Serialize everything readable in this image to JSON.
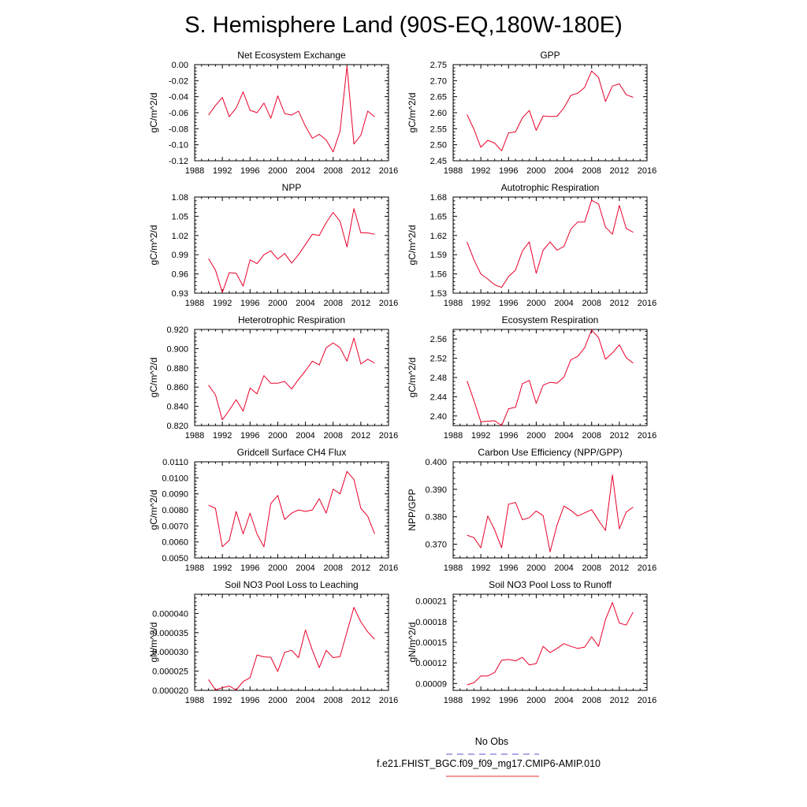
{
  "figure": {
    "title": "S. Hemisphere Land (90S-EQ,180W-180E)",
    "legend": [
      {
        "label": "No Obs",
        "color": "#5555cc",
        "dash": true
      },
      {
        "label": "f.e21.FHIST_BGC.f09_f09_mg17.CMIP6-AMIP.010",
        "color": "#e03030",
        "dash": false
      }
    ]
  },
  "chart_data": [
    {
      "type": "line",
      "title": "Net Ecosystem Exchange",
      "ylabel": "gC/m^2/d",
      "xlim": [
        1988,
        2016
      ],
      "xticks": [
        1988,
        1992,
        1996,
        2000,
        2004,
        2008,
        2012,
        2016
      ],
      "ylim": [
        -0.12,
        0.0
      ],
      "yticks": [
        "0.00",
        "-0.02",
        "-0.04",
        "-0.06",
        "-0.08",
        "-0.10",
        "-0.12"
      ],
      "ytick_values": [
        0.0,
        -0.02,
        -0.04,
        -0.06,
        -0.08,
        -0.1,
        -0.12
      ],
      "series": [
        {
          "name": "f.e21.FHIST_BGC.f09_f09_mg17.CMIP6-AMIP.010",
          "color": "#e8002a",
          "x": [
            1990,
            1991,
            1992,
            1993,
            1994,
            1995,
            1996,
            1997,
            1998,
            1999,
            2000,
            2001,
            2002,
            2003,
            2004,
            2005,
            2006,
            2007,
            2008,
            2009,
            2010,
            2011,
            2012,
            2013,
            2014
          ],
          "values": [
            -0.063,
            -0.051,
            -0.041,
            -0.065,
            -0.054,
            -0.034,
            -0.057,
            -0.06,
            -0.048,
            -0.067,
            -0.039,
            -0.061,
            -0.063,
            -0.058,
            -0.077,
            -0.092,
            -0.087,
            -0.094,
            -0.109,
            -0.083,
            -0.002,
            -0.099,
            -0.088,
            -0.058,
            -0.065
          ]
        }
      ]
    },
    {
      "type": "line",
      "title": "GPP",
      "ylabel": "gC/m^2/d",
      "xlim": [
        1988,
        2016
      ],
      "xticks": [
        1988,
        1992,
        1996,
        2000,
        2004,
        2008,
        2012,
        2016
      ],
      "ylim": [
        2.45,
        2.75
      ],
      "yticks": [
        "2.75",
        "2.70",
        "2.65",
        "2.60",
        "2.55",
        "2.50",
        "2.45"
      ],
      "ytick_values": [
        2.75,
        2.7,
        2.65,
        2.6,
        2.55,
        2.5,
        2.45
      ],
      "series": [
        {
          "name": "f.e21.FHIST_BGC.f09_f09_mg17.CMIP6-AMIP.010",
          "color": "#e8002a",
          "x": [
            1990,
            1991,
            1992,
            1993,
            1994,
            1995,
            1996,
            1997,
            1998,
            1999,
            2000,
            2001,
            2002,
            2003,
            2004,
            2005,
            2006,
            2007,
            2008,
            2009,
            2010,
            2011,
            2012,
            2013,
            2014
          ],
          "values": [
            2.594,
            2.548,
            2.492,
            2.514,
            2.505,
            2.481,
            2.537,
            2.54,
            2.584,
            2.607,
            2.545,
            2.59,
            2.588,
            2.589,
            2.615,
            2.654,
            2.661,
            2.679,
            2.73,
            2.71,
            2.635,
            2.683,
            2.69,
            2.656,
            2.648
          ]
        }
      ]
    },
    {
      "type": "line",
      "title": "NPP",
      "ylabel": "gC/m^2/d",
      "xlim": [
        1988,
        2016
      ],
      "xticks": [
        1988,
        1992,
        1996,
        2000,
        2004,
        2008,
        2012,
        2016
      ],
      "ylim": [
        0.93,
        1.08
      ],
      "yticks": [
        "1.08",
        "1.05",
        "1.02",
        "0.99",
        "0.96",
        "0.93"
      ],
      "ytick_values": [
        1.08,
        1.05,
        1.02,
        0.99,
        0.96,
        0.93
      ],
      "series": [
        {
          "name": "f.e21.FHIST_BGC.f09_f09_mg17.CMIP6-AMIP.010",
          "color": "#e8002a",
          "x": [
            1990,
            1991,
            1992,
            1993,
            1994,
            1995,
            1996,
            1997,
            1998,
            1999,
            2000,
            2001,
            2002,
            2003,
            2004,
            2005,
            2006,
            2007,
            2008,
            2009,
            2010,
            2011,
            2012,
            2013,
            2014
          ],
          "values": [
            0.984,
            0.966,
            0.931,
            0.962,
            0.961,
            0.941,
            0.982,
            0.976,
            0.99,
            0.996,
            0.983,
            0.992,
            0.977,
            0.99,
            1.006,
            1.022,
            1.02,
            1.04,
            1.056,
            1.042,
            1.002,
            1.062,
            1.024,
            1.024,
            1.022
          ]
        }
      ]
    },
    {
      "type": "line",
      "title": "Autotrophic Respiration",
      "ylabel": "gC/m^2/d",
      "xlim": [
        1988,
        2016
      ],
      "xticks": [
        1988,
        1992,
        1996,
        2000,
        2004,
        2008,
        2012,
        2016
      ],
      "ylim": [
        1.53,
        1.68
      ],
      "yticks": [
        "1.68",
        "1.65",
        "1.62",
        "1.59",
        "1.56",
        "1.53"
      ],
      "ytick_values": [
        1.68,
        1.65,
        1.62,
        1.59,
        1.56,
        1.53
      ],
      "series": [
        {
          "name": "f.e21.FHIST_BGC.f09_f09_mg17.CMIP6-AMIP.010",
          "color": "#e8002a",
          "x": [
            1990,
            1991,
            1992,
            1993,
            1994,
            1995,
            1996,
            1997,
            1998,
            1999,
            2000,
            2001,
            2002,
            2003,
            2004,
            2005,
            2006,
            2007,
            2008,
            2009,
            2010,
            2011,
            2012,
            2013,
            2014
          ],
          "values": [
            1.61,
            1.582,
            1.56,
            1.552,
            1.543,
            1.539,
            1.556,
            1.566,
            1.596,
            1.61,
            1.561,
            1.597,
            1.61,
            1.597,
            1.603,
            1.63,
            1.641,
            1.641,
            1.675,
            1.669,
            1.633,
            1.622,
            1.667,
            1.631,
            1.625
          ]
        }
      ]
    },
    {
      "type": "line",
      "title": "Heterotrophic Respiration",
      "ylabel": "gC/m^2/d",
      "xlim": [
        1988,
        2016
      ],
      "xticks": [
        1988,
        1992,
        1996,
        2000,
        2004,
        2008,
        2012,
        2016
      ],
      "ylim": [
        0.82,
        0.92
      ],
      "yticks": [
        "0.920",
        "0.900",
        "0.880",
        "0.860",
        "0.840",
        "0.820"
      ],
      "ytick_values": [
        0.92,
        0.9,
        0.88,
        0.86,
        0.84,
        0.82
      ],
      "series": [
        {
          "name": "f.e21.FHIST_BGC.f09_f09_mg17.CMIP6-AMIP.010",
          "color": "#e8002a",
          "x": [
            1990,
            1991,
            1992,
            1993,
            1994,
            1995,
            1996,
            1997,
            1998,
            1999,
            2000,
            2001,
            2002,
            2003,
            2004,
            2005,
            2006,
            2007,
            2008,
            2009,
            2010,
            2011,
            2012,
            2013,
            2014
          ],
          "values": [
            0.862,
            0.852,
            0.826,
            0.836,
            0.847,
            0.835,
            0.859,
            0.853,
            0.872,
            0.864,
            0.864,
            0.866,
            0.858,
            0.868,
            0.877,
            0.887,
            0.883,
            0.901,
            0.906,
            0.901,
            0.887,
            0.911,
            0.884,
            0.889,
            0.885
          ]
        }
      ]
    },
    {
      "type": "line",
      "title": "Ecosystem Respiration",
      "ylabel": "gC/m^2/d",
      "xlim": [
        1988,
        2016
      ],
      "xticks": [
        1988,
        1992,
        1996,
        2000,
        2004,
        2008,
        2012,
        2016
      ],
      "ylim": [
        2.38,
        2.58
      ],
      "yticks": [
        "2.56",
        "2.52",
        "2.48",
        "2.44",
        "2.40"
      ],
      "ytick_values": [
        2.56,
        2.52,
        2.48,
        2.44,
        2.4
      ],
      "series": [
        {
          "name": "f.e21.FHIST_BGC.f09_f09_mg17.CMIP6-AMIP.010",
          "color": "#e8002a",
          "x": [
            1990,
            1991,
            1992,
            1993,
            1994,
            1995,
            1996,
            1997,
            1998,
            1999,
            2000,
            2001,
            2002,
            2003,
            2004,
            2005,
            2006,
            2007,
            2008,
            2009,
            2010,
            2011,
            2012,
            2013,
            2014
          ],
          "values": [
            2.473,
            2.432,
            2.388,
            2.389,
            2.39,
            2.38,
            2.415,
            2.418,
            2.467,
            2.474,
            2.426,
            2.464,
            2.47,
            2.468,
            2.481,
            2.517,
            2.524,
            2.542,
            2.579,
            2.563,
            2.518,
            2.531,
            2.548,
            2.521,
            2.51
          ]
        }
      ]
    },
    {
      "type": "line",
      "title": "Gridcell Surface CH4 Flux",
      "ylabel": "gC/m^2/d",
      "xlim": [
        1988,
        2016
      ],
      "xticks": [
        1988,
        1992,
        1996,
        2000,
        2004,
        2008,
        2012,
        2016
      ],
      "ylim": [
        0.005,
        0.011
      ],
      "yticks": [
        "0.0110",
        "0.0100",
        "0.0090",
        "0.0080",
        "0.0070",
        "0.0060",
        "0.0050"
      ],
      "ytick_values": [
        0.011,
        0.01,
        0.009,
        0.008,
        0.007,
        0.006,
        0.005
      ],
      "series": [
        {
          "name": "f.e21.FHIST_BGC.f09_f09_mg17.CMIP6-AMIP.010",
          "color": "#e8002a",
          "x": [
            1990,
            1991,
            1992,
            1993,
            1994,
            1995,
            1996,
            1997,
            1998,
            1999,
            2000,
            2001,
            2002,
            2003,
            2004,
            2005,
            2006,
            2007,
            2008,
            2009,
            2010,
            2011,
            2012,
            2013,
            2014
          ],
          "values": [
            0.0083,
            0.0081,
            0.0057,
            0.0061,
            0.0079,
            0.0065,
            0.0078,
            0.0065,
            0.0057,
            0.0084,
            0.0089,
            0.0074,
            0.0078,
            0.008,
            0.0079,
            0.008,
            0.0087,
            0.0078,
            0.0093,
            0.009,
            0.0104,
            0.0099,
            0.0081,
            0.0076,
            0.0065
          ]
        }
      ]
    },
    {
      "type": "line",
      "title": "Carbon Use Efficiency (NPP/GPP)",
      "ylabel": "NPP/GPP",
      "xlim": [
        1988,
        2016
      ],
      "xticks": [
        1988,
        1992,
        1996,
        2000,
        2004,
        2008,
        2012,
        2016
      ],
      "ylim": [
        0.365,
        0.4
      ],
      "yticks": [
        "0.400",
        "0.390",
        "0.380",
        "0.370"
      ],
      "ytick_values": [
        0.4,
        0.39,
        0.38,
        0.37
      ],
      "series": [
        {
          "name": "f.e21.FHIST_BGC.f09_f09_mg17.CMIP6-AMIP.010",
          "color": "#e8002a",
          "x": [
            1990,
            1991,
            1992,
            1993,
            1994,
            1995,
            1996,
            1997,
            1998,
            1999,
            2000,
            2001,
            2002,
            2003,
            2004,
            2005,
            2006,
            2007,
            2008,
            2009,
            2010,
            2011,
            2012,
            2013,
            2014
          ],
          "values": [
            0.3733,
            0.3724,
            0.3687,
            0.3803,
            0.3752,
            0.3687,
            0.3846,
            0.3852,
            0.3789,
            0.3797,
            0.3821,
            0.3804,
            0.3672,
            0.377,
            0.3839,
            0.3823,
            0.3803,
            0.3814,
            0.3826,
            0.3787,
            0.375,
            0.3952,
            0.3756,
            0.3817,
            0.3835
          ]
        }
      ]
    },
    {
      "type": "line",
      "title": "Soil NO3 Pool Loss to Leaching",
      "ylabel": "gN/m^2/d",
      "xlim": [
        1988,
        2016
      ],
      "xticks": [
        1988,
        1992,
        1996,
        2000,
        2004,
        2008,
        2012,
        2016
      ],
      "ylim": [
        2e-05,
        4.5e-05
      ],
      "yticks": [
        "0.000040",
        "0.000035",
        "0.000030",
        "0.000025",
        "0.000020"
      ],
      "ytick_values": [
        4e-05,
        3.5e-05,
        3e-05,
        2.5e-05,
        2e-05
      ],
      "series": [
        {
          "name": "f.e21.FHIST_BGC.f09_f09_mg17.CMIP6-AMIP.010",
          "color": "#e8002a",
          "x": [
            1990,
            1991,
            1992,
            1993,
            1994,
            1995,
            1996,
            1997,
            1998,
            1999,
            2000,
            2001,
            2002,
            2003,
            2004,
            2005,
            2006,
            2007,
            2008,
            2009,
            2010,
            2011,
            2012,
            2013,
            2014
          ],
          "values": [
            2.28e-05,
            2.01e-05,
            2.07e-05,
            2.11e-05,
            2.01e-05,
            2.23e-05,
            2.33e-05,
            2.92e-05,
            2.87e-05,
            2.86e-05,
            2.49e-05,
            2.99e-05,
            3.04e-05,
            2.85e-05,
            3.57e-05,
            3.04e-05,
            2.59e-05,
            3.04e-05,
            2.85e-05,
            2.88e-05,
            3.52e-05,
            4.16e-05,
            3.78e-05,
            3.52e-05,
            3.33e-05
          ]
        }
      ]
    },
    {
      "type": "line",
      "title": "Soil NO3 Pool Loss to Runoff",
      "ylabel": "gN/m^2/d",
      "xlim": [
        1988,
        2016
      ],
      "xticks": [
        1988,
        1992,
        1996,
        2000,
        2004,
        2008,
        2012,
        2016
      ],
      "ylim": [
        8e-05,
        0.00022
      ],
      "yticks": [
        "0.00021",
        "0.00018",
        "0.00015",
        "0.00012",
        "0.00009"
      ],
      "ytick_values": [
        0.00021,
        0.00018,
        0.00015,
        0.00012,
        9e-05
      ],
      "series": [
        {
          "name": "f.e21.FHIST_BGC.f09_f09_mg17.CMIP6-AMIP.010",
          "color": "#e8002a",
          "x": [
            1990,
            1991,
            1992,
            1993,
            1994,
            1995,
            1996,
            1997,
            1998,
            1999,
            2000,
            2001,
            2002,
            2003,
            2004,
            2005,
            2006,
            2007,
            2008,
            2009,
            2010,
            2011,
            2012,
            2013,
            2014
          ],
          "values": [
            8.8e-05,
            9.1e-05,
            0.000101,
            0.000101,
            0.000106,
            0.000124,
            0.000125,
            0.000123,
            0.000128,
            0.000117,
            0.000119,
            0.000144,
            0.000135,
            0.000141,
            0.000148,
            0.000144,
            0.000141,
            0.000143,
            0.000158,
            0.000144,
            0.000183,
            0.000208,
            0.000178,
            0.000175,
            0.000194
          ]
        }
      ]
    }
  ]
}
